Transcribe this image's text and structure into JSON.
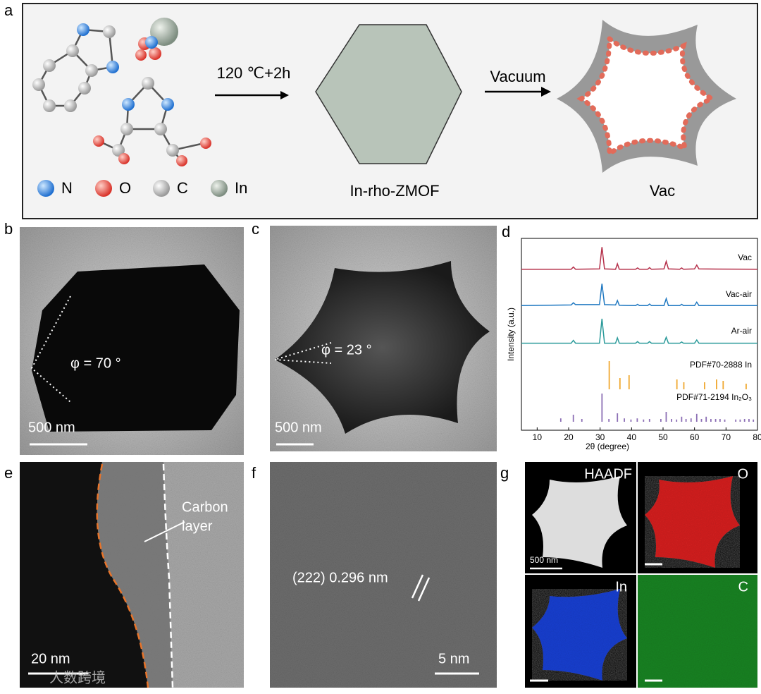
{
  "panels": {
    "a": {
      "label": "a",
      "condition1": "120 ℃+2h",
      "condition2": "Vacuum",
      "product1": "In-rho-ZMOF",
      "product2": "Vac",
      "legend": [
        "N",
        "O",
        "C",
        "In"
      ]
    },
    "b": {
      "label": "b",
      "angle": "φ = 70 °",
      "scale": "500 nm"
    },
    "c": {
      "label": "c",
      "angle": "φ = 23 °",
      "scale": "500 nm"
    },
    "d": {
      "label": "d"
    },
    "e": {
      "label": "e",
      "annotation": [
        "Carbon",
        "layer"
      ],
      "scale": "20 nm"
    },
    "f": {
      "label": "f",
      "annotation": "(222) 0.296 nm",
      "scale": "5 nm"
    },
    "g": {
      "label": "g",
      "maps": [
        "HAADF",
        "O",
        "In",
        "C"
      ],
      "scale": "500 nm"
    },
    "watermark": "人数跨境"
  },
  "chart_data": {
    "type": "line",
    "x_label": "2θ (degree)",
    "y_label": "Intensity (a.u.)",
    "xlim": [
      5,
      80
    ],
    "xticks": [
      10,
      20,
      30,
      40,
      50,
      60,
      70,
      80
    ],
    "series": [
      {
        "name": "Vac",
        "color": "#b5304a",
        "x": [
          5,
          20.8,
          21.5,
          22.2,
          29.8,
          30.6,
          31.4,
          34.9,
          35.5,
          36.1,
          41.3,
          41.9,
          42.5,
          45.1,
          45.7,
          46.3,
          50.3,
          51.0,
          51.7,
          55.3,
          55.9,
          56.5,
          60.0,
          60.7,
          61.4,
          80
        ],
        "values": [
          5,
          5,
          12,
          5,
          6,
          75,
          6,
          5,
          22,
          5,
          5,
          9,
          5,
          5,
          10,
          5,
          6,
          30,
          6,
          5,
          9,
          5,
          6,
          18,
          6,
          5
        ]
      },
      {
        "name": "Vac-air",
        "color": "#1f78c1",
        "x": [
          5,
          20.8,
          21.5,
          22.2,
          29.8,
          30.6,
          31.4,
          34.9,
          35.5,
          36.1,
          41.3,
          41.9,
          42.5,
          45.1,
          45.7,
          46.3,
          50.3,
          51.0,
          51.7,
          55.3,
          55.9,
          56.5,
          60.0,
          60.7,
          61.4,
          80
        ],
        "values": [
          6,
          8,
          15,
          9,
          9,
          75,
          9,
          8,
          22,
          7,
          6,
          10,
          6,
          6,
          11,
          6,
          6,
          28,
          6,
          6,
          10,
          6,
          6,
          17,
          6,
          6
        ]
      },
      {
        "name": "Ar-air",
        "color": "#2a9a9a",
        "x": [
          5,
          20.8,
          21.5,
          22.2,
          29.8,
          30.6,
          31.4,
          34.9,
          35.5,
          36.1,
          41.3,
          41.9,
          42.5,
          45.1,
          45.7,
          46.3,
          50.3,
          51.0,
          51.7,
          55.3,
          55.9,
          56.5,
          60.0,
          60.7,
          61.4,
          80
        ],
        "values": [
          3,
          3,
          12,
          3,
          3,
          80,
          3,
          3,
          20,
          3,
          3,
          8,
          3,
          3,
          8,
          3,
          3,
          22,
          3,
          3,
          7,
          3,
          3,
          13,
          3,
          3
        ]
      }
    ],
    "reference_patterns": [
      {
        "name": "PDF#70-2888 In",
        "color": "#f0a830",
        "x": [
          32.9,
          36.3,
          39.2,
          54.4,
          56.6,
          63.2,
          67.0,
          69.1,
          76.4
        ],
        "values": [
          100,
          40,
          50,
          35,
          25,
          25,
          35,
          30,
          20
        ]
      },
      {
        "name": "PDF#71-2194 In₂O₃",
        "color": "#8c6fb5",
        "x": [
          17.5,
          21.5,
          24.2,
          30.6,
          32.8,
          35.5,
          37.7,
          39.8,
          41.8,
          43.8,
          45.7,
          49.3,
          51.0,
          52.7,
          54.3,
          55.9,
          57.3,
          58.9,
          60.7,
          62.2,
          63.7,
          65.2,
          66.7,
          68.1,
          69.6,
          73.1,
          74.5,
          75.9,
          77.3,
          78.7
        ],
        "values": [
          12,
          25,
          10,
          100,
          10,
          30,
          12,
          8,
          12,
          8,
          10,
          10,
          35,
          10,
          8,
          18,
          10,
          12,
          28,
          10,
          18,
          10,
          10,
          10,
          8,
          8,
          8,
          10,
          10,
          8
        ]
      }
    ]
  }
}
